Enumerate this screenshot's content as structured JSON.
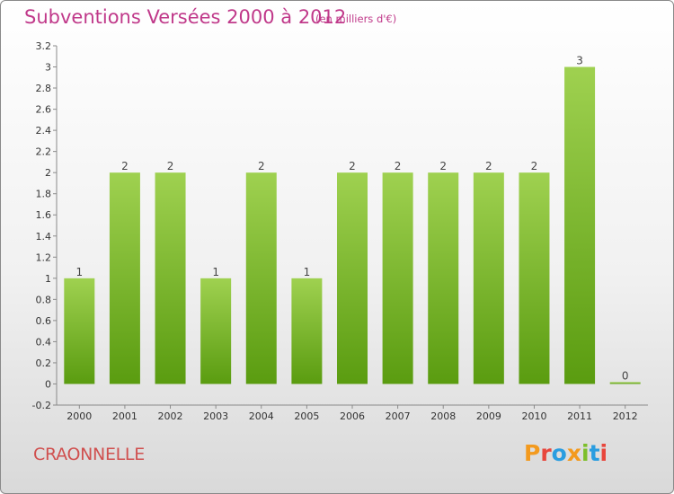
{
  "header": {
    "title": "Subventions Versées 2000 à 2012",
    "subtitle": "(en milliers d'€)"
  },
  "footer": {
    "commune": "CRAONNELLE",
    "logo_letters": [
      "P",
      "r",
      "o",
      "x",
      "i",
      "t",
      "i"
    ]
  },
  "colors": {
    "title": "#c0398a",
    "commune": "#d0504f",
    "bar_top": "#9fd150",
    "bar_bottom": "#5a9c10",
    "logo": [
      "#f39a1e",
      "#e8463c",
      "#2a9de0",
      "#f39a1e",
      "#7cbf2a",
      "#2a9de0",
      "#e8463c"
    ]
  },
  "chart_data": {
    "type": "bar",
    "categories": [
      "2000",
      "2001",
      "2002",
      "2003",
      "2004",
      "2005",
      "2006",
      "2007",
      "2008",
      "2009",
      "2010",
      "2011",
      "2012"
    ],
    "values": [
      1,
      2,
      2,
      1,
      2,
      1,
      2,
      2,
      2,
      2,
      2,
      3,
      0
    ],
    "data_labels": [
      "1",
      "2",
      "2",
      "1",
      "2",
      "1",
      "2",
      "2",
      "2",
      "2",
      "2",
      "3",
      "0"
    ],
    "ylim": [
      -0.2,
      3.2
    ],
    "yticks": [
      "-0.2",
      "0",
      "0.2",
      "0.4",
      "0.6",
      "0.8",
      "1",
      "1.2",
      "1.4",
      "1.6",
      "1.8",
      "2",
      "2.2",
      "2.4",
      "2.6",
      "2.8",
      "3",
      "3.2"
    ],
    "ytick_values": [
      -0.2,
      0,
      0.2,
      0.4,
      0.6,
      0.8,
      1,
      1.2,
      1.4,
      1.6,
      1.8,
      2,
      2.2,
      2.4,
      2.6,
      2.8,
      3,
      3.2
    ],
    "title": "Subventions Versées 2000 à 2012",
    "xlabel": "",
    "ylabel": "",
    "grid": false,
    "legend": "none"
  }
}
